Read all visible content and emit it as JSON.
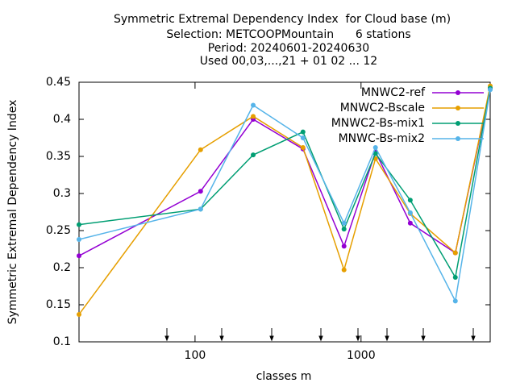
{
  "chart_data": {
    "type": "line",
    "title_lines": [
      "Symmetric Extremal Dependency Index  for Cloud base (m)",
      "Selection: METCOOPMountain      6 stations",
      "Period: 20240601-20240630",
      "Used 00,03,...,21 + 01 02 ... 12"
    ],
    "x_label": "classes m",
    "y_label": "Symmetric Extremal Dependency Index",
    "x": [
      20,
      108,
      224,
      447,
      790,
      1222,
      1980,
      3700,
      6000
    ],
    "xlim": [
      20,
      6000
    ],
    "xticks": [
      100,
      1000
    ],
    "x_log": true,
    "ylim": [
      0.1,
      0.45
    ],
    "yticks": [
      0.1,
      0.15,
      0.2,
      0.25,
      0.3,
      0.35,
      0.4,
      0.45
    ],
    "legend": "top-right",
    "series": [
      {
        "name": "MNWC2-ref",
        "color": "#9400d3",
        "values": [
          0.216,
          0.303,
          0.4,
          0.36,
          0.229,
          0.356,
          0.26,
          0.22,
          0.442
        ]
      },
      {
        "name": "MNWC2-Bscale",
        "color": "#e69f00",
        "values": [
          0.137,
          0.359,
          0.404,
          0.362,
          0.197,
          0.347,
          0.273,
          0.22,
          0.445
        ]
      },
      {
        "name": "MNWC2-Bs-mix1",
        "color": "#009e73",
        "values": [
          0.258,
          0.279,
          0.352,
          0.383,
          0.252,
          0.354,
          0.291,
          0.187,
          0.442
        ]
      },
      {
        "name": "MNWC-Bs-mix2",
        "color": "#56b4e9",
        "values": [
          0.238,
          0.279,
          0.419,
          0.375,
          0.26,
          0.362,
          0.274,
          0.155,
          0.44
        ]
      }
    ]
  }
}
